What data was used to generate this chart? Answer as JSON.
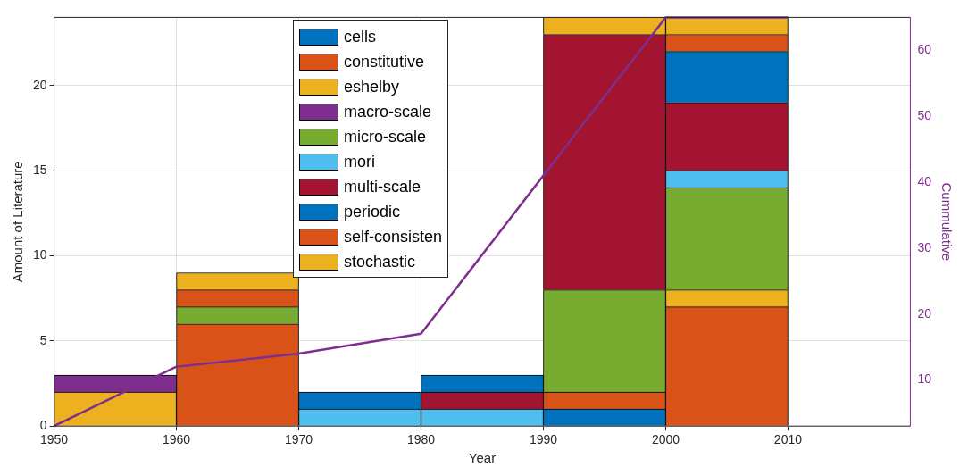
{
  "chart_data": {
    "type": "bar",
    "stacked": true,
    "xlabel": "Year",
    "ylabel": "Amount of Literature",
    "y2label": "Cummulative",
    "xlim": [
      1950,
      2020
    ],
    "xticks": [
      1950,
      1960,
      1970,
      1980,
      1990,
      2000,
      2010
    ],
    "ylim": [
      0,
      24
    ],
    "yticks": [
      0,
      5,
      10,
      15,
      20
    ],
    "y2lim": [
      3,
      65
    ],
    "y2ticks": [
      10,
      20,
      30,
      40,
      50,
      60
    ],
    "x": [
      1955,
      1965,
      1975,
      1985,
      1995,
      2005
    ],
    "grid": true,
    "legend": "top",
    "series": [
      {
        "name": "cells",
        "color": "#0072bd",
        "values": [
          null,
          null,
          null,
          null,
          1,
          null
        ]
      },
      {
        "name": "constitutive",
        "color": "#d95319",
        "values": [
          null,
          6,
          null,
          null,
          1,
          7
        ]
      },
      {
        "name": "eshelby",
        "color": "#edb120",
        "values": [
          2,
          null,
          null,
          null,
          null,
          1
        ]
      },
      {
        "name": "macro-scale",
        "color": "#7e2f8e",
        "values": [
          1,
          null,
          null,
          null,
          null,
          null
        ]
      },
      {
        "name": "micro-scale",
        "color": "#77ac30",
        "values": [
          null,
          1,
          null,
          null,
          6,
          6
        ]
      },
      {
        "name": "mori",
        "color": "#4dbeee",
        "values": [
          null,
          null,
          1,
          1,
          null,
          1
        ]
      },
      {
        "name": "multi-scale",
        "color": "#a2142f",
        "values": [
          null,
          null,
          null,
          1,
          15,
          4
        ]
      },
      {
        "name": "periodic",
        "color": "#0072bd",
        "values": [
          null,
          null,
          1,
          1,
          null,
          3
        ]
      },
      {
        "name": "self-consisten",
        "color": "#d95319",
        "values": [
          null,
          1,
          null,
          null,
          null,
          1
        ]
      },
      {
        "name": "stochastic",
        "color": "#edb120",
        "values": [
          null,
          1,
          null,
          null,
          1,
          1
        ]
      },
      {
        "type": "line",
        "axis": "y2",
        "color": "#7e2f8e",
        "x": [
          1950,
          1960,
          1970,
          1980,
          1990,
          2000,
          2010
        ],
        "values": [
          3,
          12,
          14,
          17,
          41,
          65,
          65
        ]
      }
    ]
  }
}
